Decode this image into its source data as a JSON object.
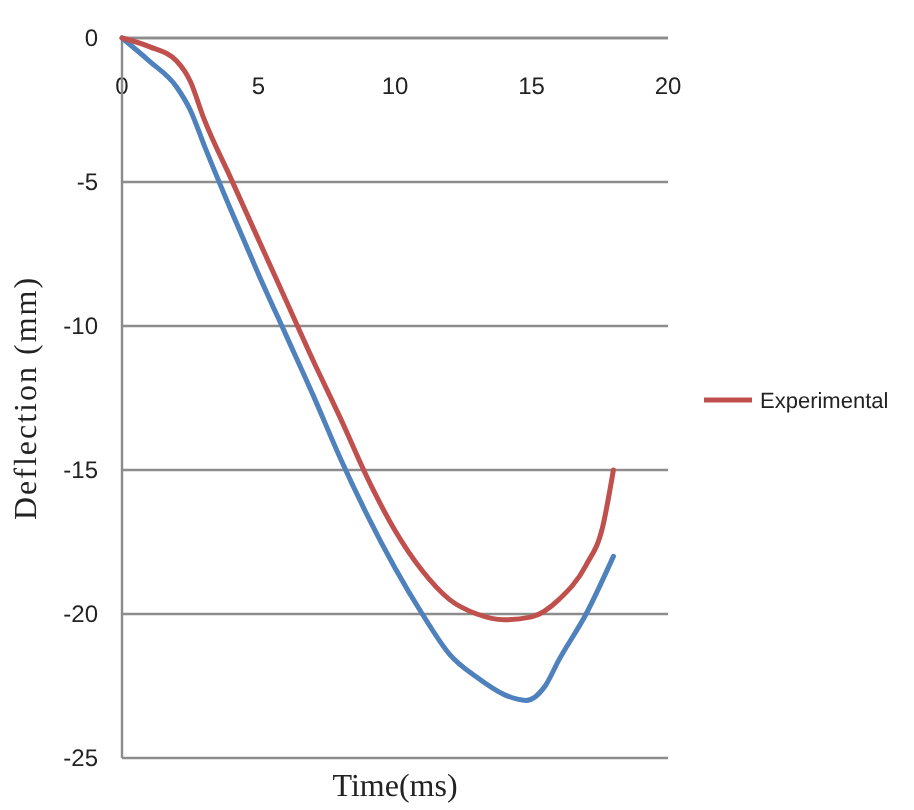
{
  "chart_data": {
    "type": "line",
    "xlabel": "Time(ms)",
    "ylabel": "Deflection (mm)",
    "xlim": [
      0,
      20
    ],
    "xticks": [
      0,
      5,
      10,
      15,
      20
    ],
    "ylim": [
      -25,
      0
    ],
    "yticks": [
      -25,
      -20,
      -15,
      -10,
      -5,
      0
    ],
    "grid": "y",
    "legend": "right",
    "series": [
      {
        "color": "#4f81bd",
        "x": [
          0,
          1,
          2,
          2.5,
          3,
          4,
          5,
          6,
          7,
          8,
          9,
          10,
          11,
          12,
          13,
          14,
          14.8,
          15.5,
          16,
          17,
          18
        ],
        "values": [
          0,
          -0.8,
          -1.7,
          -2.5,
          -3.7,
          -6,
          -8.2,
          -10.3,
          -12.4,
          -14.6,
          -16.6,
          -18.4,
          -20,
          -21.4,
          -22.2,
          -22.8,
          -23,
          -22.5,
          -21.6,
          -20,
          -18
        ]
      },
      {
        "name": "Experimental",
        "color": "#c0504d",
        "x": [
          0,
          1,
          2,
          2.5,
          3,
          4,
          5,
          6,
          7,
          8,
          9,
          10,
          11,
          12,
          13,
          14,
          15,
          16,
          17,
          17.6,
          18
        ],
        "values": [
          0,
          -0.3,
          -0.8,
          -1.5,
          -2.8,
          -4.9,
          -7,
          -9.1,
          -11.2,
          -13.2,
          -15.3,
          -17.1,
          -18.5,
          -19.5,
          -20,
          -20.2,
          -20.1,
          -19.5,
          -18.3,
          -17,
          -15
        ]
      }
    ]
  }
}
